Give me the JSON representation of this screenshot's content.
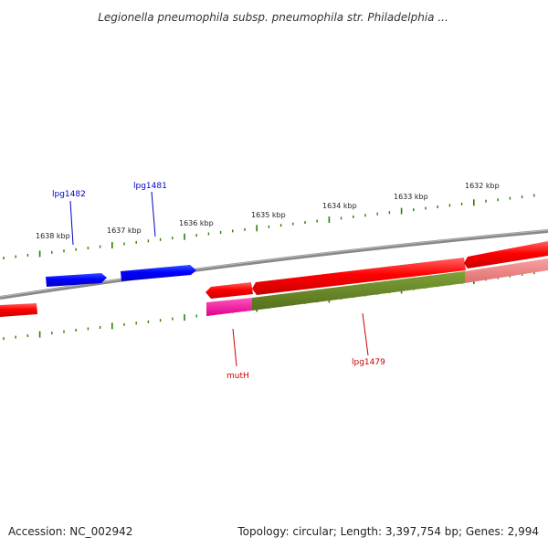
{
  "title": "Legionella pneumophila subsp. pneumophila str. Philadelphia ...",
  "footer": {
    "accession": "Accession: NC_002942",
    "summary": "Topology: circular; Length: 3,397,754 bp; Genes: 2,994"
  },
  "scale": {
    "tick_labels": [
      "1638 kbp",
      "1637 kbp",
      "1636 kbp",
      "1635 kbp",
      "1634 kbp",
      "1633 kbp",
      "1632 kbp"
    ]
  },
  "genes": {
    "labels": [
      {
        "name": "lpg1482",
        "color": "#0000cc"
      },
      {
        "name": "lpg1481",
        "color": "#0000cc"
      },
      {
        "name": "mutH",
        "color": "#cc0000"
      },
      {
        "name": "lpg1479",
        "color": "#cc0000"
      }
    ]
  },
  "colors": {
    "backbone": "#888888",
    "forward_gene": "#0000ff",
    "reverse_gene": "#ff0000",
    "tick": "#2e7d00",
    "feature_magenta": "#ff1aa0",
    "feature_olive": "#6b8e23",
    "feature_pink": "#f08080"
  }
}
